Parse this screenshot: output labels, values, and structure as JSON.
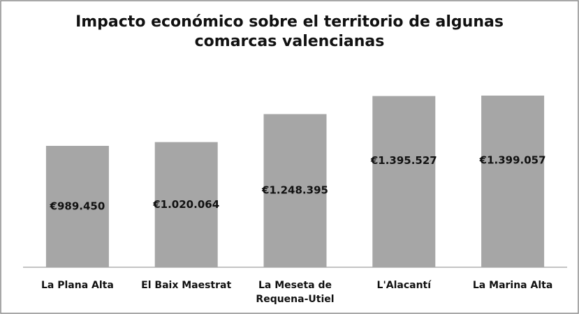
{
  "chart_data": {
    "type": "bar",
    "title": "Impacto económico sobre el territorio de algunas comarcas valencianas",
    "categories": [
      "La Plana Alta",
      "El Baix Maestrat",
      "La Meseta de Requena-Utiel",
      "L'Alacantí",
      "La Marina Alta"
    ],
    "values": [
      989450,
      1020064,
      1248395,
      1395527,
      1399057
    ],
    "value_labels": [
      "€989.450",
      "€1.020.064",
      "€1.248.395",
      "€1.395.527",
      "€1.399.057"
    ],
    "color": "#a6a6a6"
  }
}
